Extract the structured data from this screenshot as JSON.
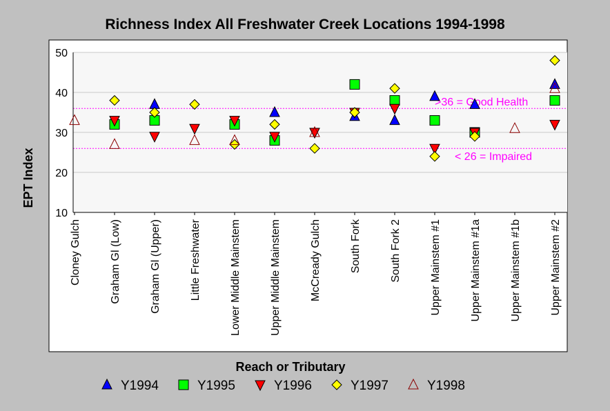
{
  "chart_data": {
    "type": "scatter",
    "title": "Richness Index All Freshwater Creek Locations 1994-1998",
    "xlabel": "Reach or Tributary",
    "ylabel": "EPT Index",
    "ylim": [
      10,
      50
    ],
    "yticks": [
      10,
      20,
      30,
      40,
      50
    ],
    "grid": true,
    "legend_position": "bottom",
    "categories": [
      "Cloney Gulch",
      "Graham Gl (Low)",
      "Graham Gl (Upper)",
      "Little Freshwater",
      "Lower Middle Mainstem",
      "Upper Middle Mainstem",
      "McCready Gulch",
      "South Fork",
      "South Fork 2",
      "Upper Mainstem #1",
      "Upper Mainstem #1a",
      "Upper Mainstem #1b",
      "Upper Mainstem #2"
    ],
    "series": [
      {
        "name": "Y1994",
        "marker": "triangle-up",
        "color": "#0000ff",
        "fill": true,
        "values": [
          null,
          null,
          37,
          null,
          null,
          35,
          null,
          34,
          33,
          39,
          37,
          null,
          42
        ]
      },
      {
        "name": "Y1995",
        "marker": "square",
        "color": "#00ff00",
        "fill": true,
        "values": [
          null,
          32,
          33,
          null,
          32,
          28,
          null,
          42,
          38,
          33,
          30,
          null,
          38
        ]
      },
      {
        "name": "Y1996",
        "marker": "triangle-down",
        "color": "#ff0000",
        "fill": true,
        "values": [
          null,
          33,
          29,
          31,
          33,
          29,
          30,
          35,
          36,
          26,
          30,
          null,
          32
        ]
      },
      {
        "name": "Y1997",
        "marker": "diamond",
        "color": "#ffff00",
        "fill": true,
        "values": [
          null,
          38,
          35,
          37,
          27,
          32,
          26,
          35,
          41,
          24,
          29,
          null,
          48
        ]
      },
      {
        "name": "Y1998",
        "marker": "triangle-up",
        "color": "#8b0000",
        "fill": false,
        "values": [
          33,
          27,
          null,
          28,
          28,
          null,
          30,
          null,
          null,
          null,
          null,
          31,
          41
        ]
      }
    ],
    "reference_lines": [
      {
        "value": 36,
        "label": ">36 = Good Health",
        "color": "#ff00ff"
      },
      {
        "value": 26,
        "label": "< 26 = Impaired",
        "color": "#ff00ff"
      }
    ]
  }
}
